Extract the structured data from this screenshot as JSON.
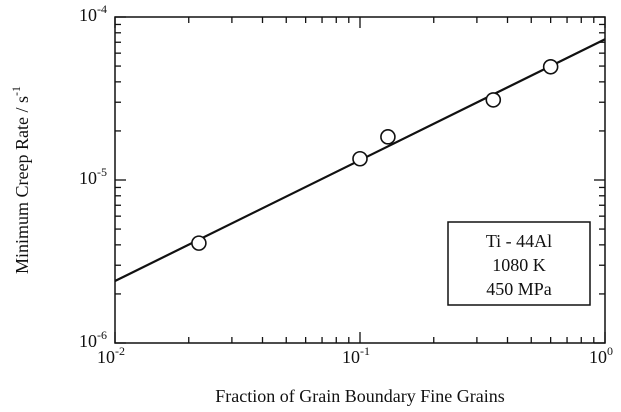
{
  "chart_data": {
    "type": "scatter",
    "xlabel": "Fraction of Grain Boundary Fine Grains",
    "ylabel": "Minimum Creep Rate  /  s",
    "ylabel_exponent": "-1",
    "log_x": true,
    "log_y": true,
    "x": [
      0.022,
      0.1,
      0.13,
      0.35,
      0.6
    ],
    "values": [
      4.1e-06,
      1.35e-05,
      1.84e-05,
      3.1e-05,
      4.95e-05
    ],
    "color": "#111111",
    "fit_line": {
      "x": [
        0.01,
        1
      ],
      "y": [
        2.4e-06,
        7.3e-05
      ]
    },
    "xlim": [
      0.01,
      1
    ],
    "ylim": [
      1e-06,
      0.0001
    ],
    "xticks": [
      {
        "value": 0.01,
        "label": "10",
        "exponent": "-2"
      },
      {
        "value": 0.1,
        "label": "10",
        "exponent": "-1"
      },
      {
        "value": 1,
        "label": "10",
        "exponent": "0"
      }
    ],
    "yticks": [
      {
        "value": 1e-06,
        "label": "10",
        "exponent": "-6"
      },
      {
        "value": 1e-05,
        "label": "10",
        "exponent": "-5"
      },
      {
        "value": 0.0001,
        "label": "10",
        "exponent": "-4"
      }
    ],
    "annotation": [
      "Ti - 44Al",
      "1080 K",
      "450 MPa"
    ]
  }
}
